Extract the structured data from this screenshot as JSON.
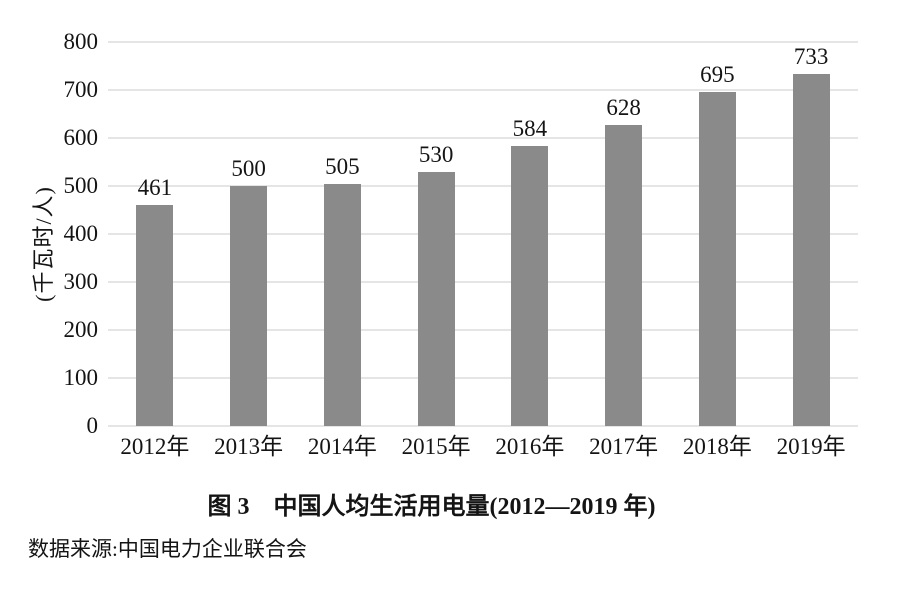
{
  "chart_data": {
    "type": "bar",
    "title": "图 3　中国人均生活用电量(2012—2019 年)",
    "categories": [
      "2012年",
      "2013年",
      "2014年",
      "2015年",
      "2016年",
      "2017年",
      "2018年",
      "2019年"
    ],
    "values": [
      461,
      500,
      505,
      530,
      584,
      628,
      695,
      733
    ],
    "xlabel": "",
    "ylabel": "(千瓦时/人)",
    "ylim": [
      0,
      800
    ],
    "ytick_interval": 100,
    "yticks": [
      0,
      100,
      200,
      300,
      400,
      500,
      600,
      700,
      800
    ],
    "grid": true,
    "legend": "none",
    "bar_color": "#8a8a8a",
    "gridline_color": "#e5e5e5",
    "text_color": "#141414",
    "value_labels_shown": true
  },
  "caption": {
    "text": "图 3　中国人均生活用电量(2012—2019 年)"
  },
  "source": {
    "text": "数据来源:中国电力企业联合会"
  }
}
